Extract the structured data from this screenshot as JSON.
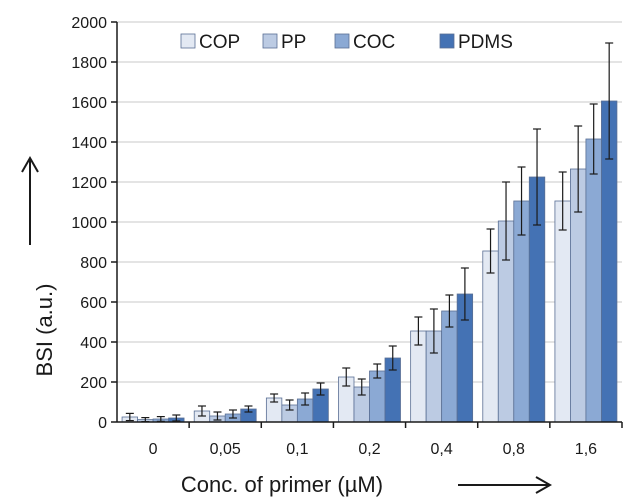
{
  "chart_data": {
    "type": "bar",
    "title": "",
    "xlabel": "Conc. of primer (µM)",
    "ylabel": "BSI (a.u.)",
    "ylim": [
      0,
      2000
    ],
    "yticks": [
      0,
      200,
      400,
      600,
      800,
      1000,
      1200,
      1400,
      1600,
      1800,
      2000
    ],
    "grid": true,
    "legend_position": "top",
    "categories": [
      "0",
      "0,05",
      "0,1",
      "0,2",
      "0,4",
      "0,8",
      "1,6"
    ],
    "series": [
      {
        "name": "COP",
        "color": "#e3e9f3",
        "values": [
          25,
          55,
          120,
          225,
          455,
          855,
          1105
        ],
        "errors": [
          18,
          25,
          20,
          45,
          70,
          110,
          145
        ]
      },
      {
        "name": "PP",
        "color": "#bccbe3",
        "values": [
          12,
          30,
          85,
          175,
          455,
          1005,
          1265
        ],
        "errors": [
          10,
          20,
          25,
          40,
          110,
          195,
          215
        ]
      },
      {
        "name": "COC",
        "color": "#8ba9d4",
        "values": [
          15,
          40,
          115,
          255,
          555,
          1105,
          1415
        ],
        "errors": [
          12,
          20,
          30,
          35,
          80,
          170,
          175
        ]
      },
      {
        "name": "PDMS",
        "color": "#4472b4",
        "values": [
          20,
          65,
          165,
          320,
          640,
          1225,
          1605
        ],
        "errors": [
          15,
          15,
          30,
          60,
          130,
          240,
          290
        ]
      }
    ]
  }
}
